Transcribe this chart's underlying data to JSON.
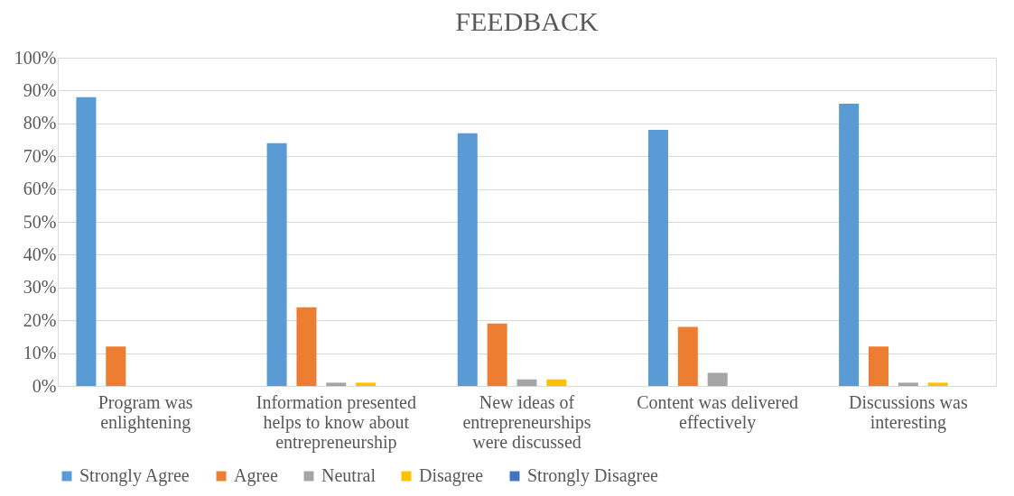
{
  "chart_data": {
    "type": "bar",
    "title": "FEEDBACK",
    "categories": [
      "Program was enlightening",
      "Information presented helps to know about entrepreneurship",
      "New ideas of entrepreneurships were discussed",
      "Content was delivered effectively",
      "Discussions was interesting"
    ],
    "series": [
      {
        "name": "Strongly Agree",
        "color": "#5b9bd5",
        "values": [
          88,
          74,
          77,
          78,
          86
        ]
      },
      {
        "name": "Agree",
        "color": "#ed7d31",
        "values": [
          12,
          24,
          19,
          18,
          12
        ]
      },
      {
        "name": "Neutral",
        "color": "#a5a5a5",
        "values": [
          0,
          1,
          2,
          4,
          1
        ]
      },
      {
        "name": "Disagree",
        "color": "#ffc000",
        "values": [
          0,
          1,
          2,
          0,
          1
        ]
      },
      {
        "name": "Strongly Disagree",
        "color": "#4472c4",
        "values": [
          0,
          0,
          0,
          0,
          0
        ]
      }
    ],
    "ylim": [
      0,
      100
    ],
    "yticks": [
      {
        "value": 0,
        "label": "0%"
      },
      {
        "value": 10,
        "label": "10%"
      },
      {
        "value": 20,
        "label": "20%"
      },
      {
        "value": 30,
        "label": "30%"
      },
      {
        "value": 40,
        "label": "40%"
      },
      {
        "value": 50,
        "label": "50%"
      },
      {
        "value": 60,
        "label": "60%"
      },
      {
        "value": 70,
        "label": "70%"
      },
      {
        "value": 80,
        "label": "80%"
      },
      {
        "value": 90,
        "label": "90%"
      },
      {
        "value": 100,
        "label": "100%"
      }
    ],
    "grid": "y",
    "legend": "bottom"
  }
}
